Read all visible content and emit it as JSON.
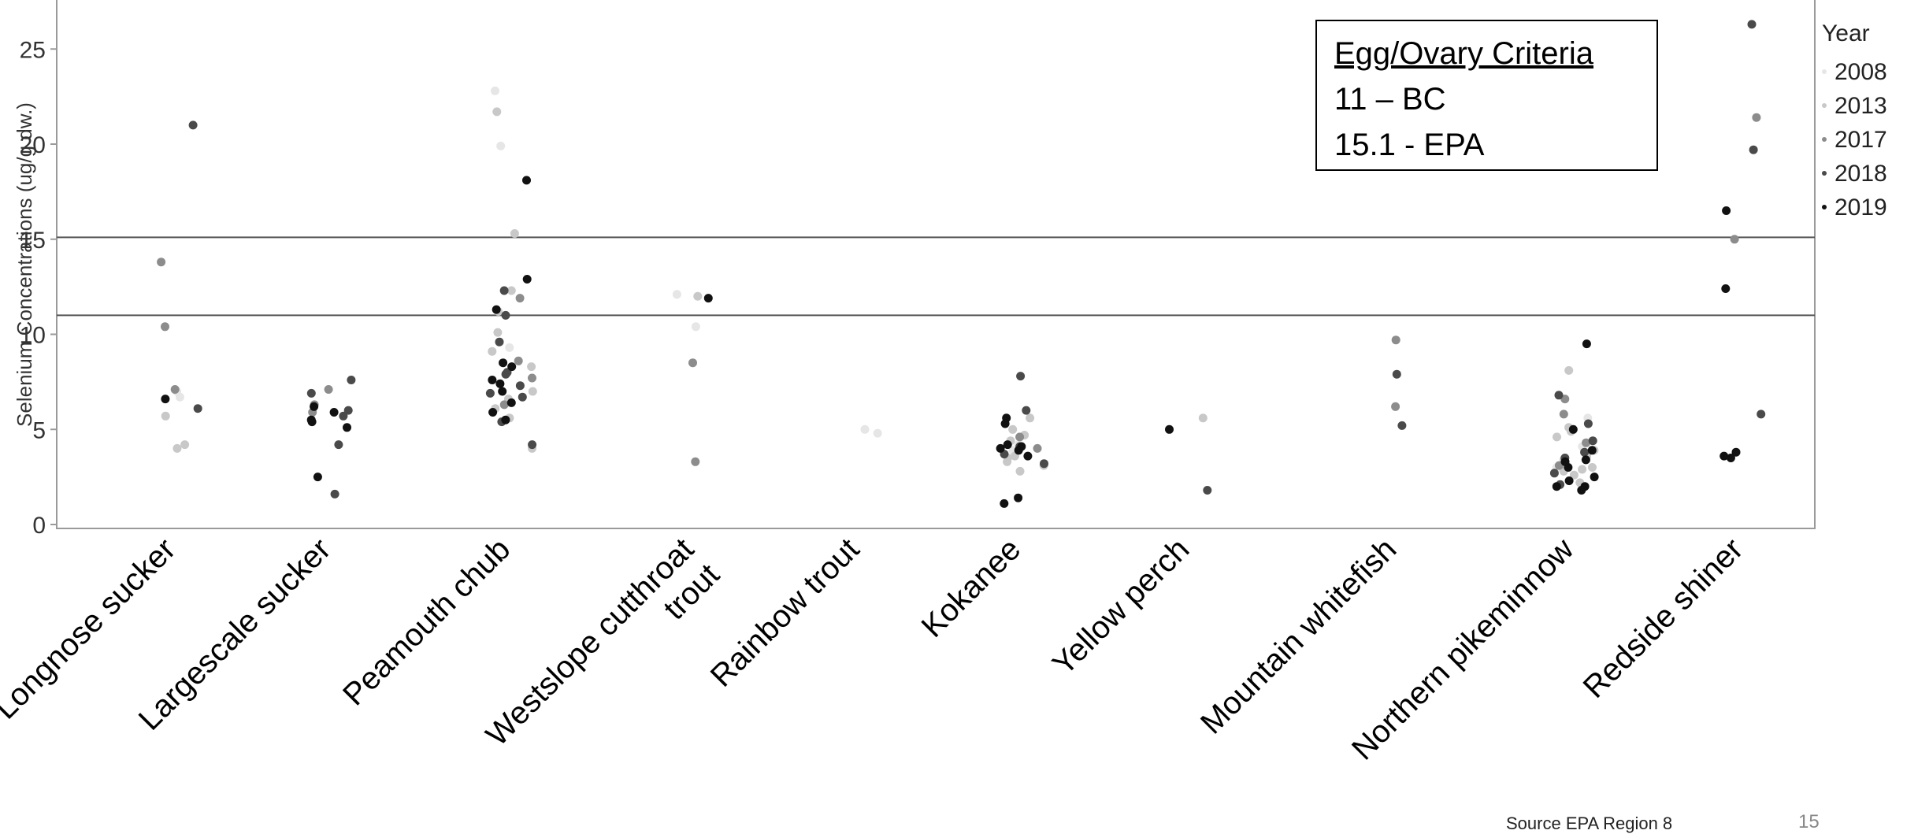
{
  "chart_data": {
    "type": "scatter",
    "title": "",
    "xlabel": "",
    "ylabel": "Selenium Concentrations (ug/g dw.)",
    "ylim": [
      0,
      27
    ],
    "yticks": [
      0,
      5,
      10,
      15,
      20,
      25
    ],
    "categories": [
      "Longnose sucker",
      "Largescale sucker",
      "Peamouth chub",
      "Westslope cutthroat trout",
      "Rainbow trout",
      "Kokanee",
      "Yellow perch",
      "Mountain whitefish",
      "Northern pikeminnow",
      "Redside shiner"
    ],
    "reference_lines": [
      {
        "value": 11,
        "label": "BC"
      },
      {
        "value": 15.1,
        "label": "EPA"
      }
    ],
    "legend": {
      "title": "Year",
      "placement": "right"
    },
    "series": [
      {
        "name": "2008",
        "color": "#e6e6e6",
        "points": [
          [
            "Longnose sucker",
            7.0
          ],
          [
            "Longnose sucker",
            6.7
          ],
          [
            "Peamouth chub",
            22.8
          ],
          [
            "Peamouth chub",
            19.9
          ],
          [
            "Peamouth chub",
            9.3
          ],
          [
            "Westslope cutthroat trout",
            10.4
          ],
          [
            "Westslope cutthroat trout",
            12.1
          ],
          [
            "Rainbow trout",
            4.8
          ],
          [
            "Rainbow trout",
            5.0
          ],
          [
            "Kokanee",
            4.2
          ],
          [
            "Kokanee",
            3.9
          ],
          [
            "Northern pikeminnow",
            5.6
          ],
          [
            "Northern pikeminnow",
            4.1
          ],
          [
            "Northern pikeminnow",
            3.0
          ]
        ]
      },
      {
        "name": "2013",
        "color": "#c8c8c8",
        "points": [
          [
            "Longnose sucker",
            4.0
          ],
          [
            "Longnose sucker",
            5.7
          ],
          [
            "Longnose sucker",
            4.2
          ],
          [
            "Peamouth chub",
            21.7
          ],
          [
            "Peamouth chub",
            15.3
          ],
          [
            "Peamouth chub",
            12.3
          ],
          [
            "Peamouth chub",
            10.1
          ],
          [
            "Peamouth chub",
            9.1
          ],
          [
            "Peamouth chub",
            8.3
          ],
          [
            "Peamouth chub",
            7.0
          ],
          [
            "Peamouth chub",
            6.1
          ],
          [
            "Peamouth chub",
            5.6
          ],
          [
            "Peamouth chub",
            4.0
          ],
          [
            "Peamouth chub",
            11.2
          ],
          [
            "Peamouth chub",
            6.6
          ],
          [
            "Westslope cutthroat trout",
            12.0
          ],
          [
            "Kokanee",
            5.6
          ],
          [
            "Kokanee",
            5.0
          ],
          [
            "Kokanee",
            3.5
          ],
          [
            "Kokanee",
            3.1
          ],
          [
            "Kokanee",
            2.8
          ],
          [
            "Kokanee",
            4.4
          ],
          [
            "Kokanee",
            4.7
          ],
          [
            "Kokanee",
            3.6
          ],
          [
            "Kokanee",
            3.3
          ],
          [
            "Yellow perch",
            5.6
          ],
          [
            "Northern pikeminnow",
            8.1
          ],
          [
            "Northern pikeminnow",
            5.1
          ],
          [
            "Northern pikeminnow",
            4.6
          ],
          [
            "Northern pikeminnow",
            3.9
          ],
          [
            "Northern pikeminnow",
            3.4
          ],
          [
            "Northern pikeminnow",
            3.0
          ],
          [
            "Northern pikeminnow",
            2.6
          ],
          [
            "Northern pikeminnow",
            2.8
          ],
          [
            "Northern pikeminnow",
            2.2
          ],
          [
            "Northern pikeminnow",
            4.9
          ],
          [
            "Northern pikeminnow",
            3.6
          ],
          [
            "Northern pikeminnow",
            2.9
          ]
        ]
      },
      {
        "name": "2017",
        "color": "#8c8c8c",
        "points": [
          [
            "Longnose sucker",
            13.8
          ],
          [
            "Longnose sucker",
            10.4
          ],
          [
            "Longnose sucker",
            7.1
          ],
          [
            "Largescale sucker",
            6.3
          ],
          [
            "Largescale sucker",
            5.9
          ],
          [
            "Largescale sucker",
            7.1
          ],
          [
            "Peamouth chub",
            11.9
          ],
          [
            "Peamouth chub",
            8.6
          ],
          [
            "Peamouth chub",
            7.7
          ],
          [
            "Peamouth chub",
            6.3
          ],
          [
            "Westslope cutthroat trout",
            8.5
          ],
          [
            "Westslope cutthroat trout",
            3.3
          ],
          [
            "Kokanee",
            4.6
          ],
          [
            "Kokanee",
            4.0
          ],
          [
            "Mountain whitefish",
            9.7
          ],
          [
            "Mountain whitefish",
            6.2
          ],
          [
            "Northern pikeminnow",
            6.6
          ],
          [
            "Northern pikeminnow",
            5.8
          ],
          [
            "Northern pikeminnow",
            4.3
          ],
          [
            "Northern pikeminnow",
            3.1
          ],
          [
            "Redside shiner",
            15.0
          ],
          [
            "Redside shiner",
            21.4
          ]
        ]
      },
      {
        "name": "2018",
        "color": "#4a4a4a",
        "points": [
          [
            "Longnose sucker",
            21.0
          ],
          [
            "Longnose sucker",
            6.1
          ],
          [
            "Largescale sucker",
            7.6
          ],
          [
            "Largescale sucker",
            6.0
          ],
          [
            "Largescale sucker",
            5.7
          ],
          [
            "Largescale sucker",
            4.2
          ],
          [
            "Largescale sucker",
            1.6
          ],
          [
            "Largescale sucker",
            6.9
          ],
          [
            "Peamouth chub",
            12.3
          ],
          [
            "Peamouth chub",
            11.0
          ],
          [
            "Peamouth chub",
            9.6
          ],
          [
            "Peamouth chub",
            8.0
          ],
          [
            "Peamouth chub",
            7.3
          ],
          [
            "Peamouth chub",
            6.7
          ],
          [
            "Peamouth chub",
            5.4
          ],
          [
            "Peamouth chub",
            4.2
          ],
          [
            "Peamouth chub",
            6.9
          ],
          [
            "Peamouth chub",
            7.9
          ],
          [
            "Kokanee",
            6.0
          ],
          [
            "Kokanee",
            4.1
          ],
          [
            "Kokanee",
            3.7
          ],
          [
            "Kokanee",
            3.2
          ],
          [
            "Kokanee",
            7.8
          ],
          [
            "Yellow perch",
            1.8
          ],
          [
            "Mountain whitefish",
            5.2
          ],
          [
            "Mountain whitefish",
            7.9
          ],
          [
            "Northern pikeminnow",
            6.8
          ],
          [
            "Northern pikeminnow",
            5.3
          ],
          [
            "Northern pikeminnow",
            4.4
          ],
          [
            "Northern pikeminnow",
            3.5
          ],
          [
            "Northern pikeminnow",
            2.7
          ],
          [
            "Northern pikeminnow",
            2.1
          ],
          [
            "Northern pikeminnow",
            3.8
          ],
          [
            "Redside shiner",
            19.7
          ],
          [
            "Redside shiner",
            26.3
          ],
          [
            "Redside shiner",
            5.8
          ]
        ]
      },
      {
        "name": "2019",
        "color": "#111111",
        "points": [
          [
            "Longnose sucker",
            6.6
          ],
          [
            "Largescale sucker",
            5.1
          ],
          [
            "Largescale sucker",
            2.5
          ],
          [
            "Largescale sucker",
            5.4
          ],
          [
            "Largescale sucker",
            6.2
          ],
          [
            "Largescale sucker",
            5.5
          ],
          [
            "Largescale sucker",
            5.9
          ],
          [
            "Peamouth chub",
            18.1
          ],
          [
            "Peamouth chub",
            12.9
          ],
          [
            "Peamouth chub",
            11.3
          ],
          [
            "Peamouth chub",
            8.3
          ],
          [
            "Peamouth chub",
            7.6
          ],
          [
            "Peamouth chub",
            7.0
          ],
          [
            "Peamouth chub",
            6.4
          ],
          [
            "Peamouth chub",
            5.9
          ],
          [
            "Peamouth chub",
            5.5
          ],
          [
            "Peamouth chub",
            7.4
          ],
          [
            "Peamouth chub",
            8.5
          ],
          [
            "Westslope cutthroat trout",
            11.9
          ],
          [
            "Kokanee",
            5.6
          ],
          [
            "Kokanee",
            4.2
          ],
          [
            "Kokanee",
            4.0
          ],
          [
            "Kokanee",
            3.6
          ],
          [
            "Kokanee",
            1.1
          ],
          [
            "Kokanee",
            1.4
          ],
          [
            "Kokanee",
            5.3
          ],
          [
            "Kokanee",
            4.1
          ],
          [
            "Kokanee",
            3.9
          ],
          [
            "Yellow perch",
            5.0
          ],
          [
            "Northern pikeminnow",
            9.5
          ],
          [
            "Northern pikeminnow",
            5.0
          ],
          [
            "Northern pikeminnow",
            3.4
          ],
          [
            "Northern pikeminnow",
            3.0
          ],
          [
            "Northern pikeminnow",
            2.5
          ],
          [
            "Northern pikeminnow",
            2.0
          ],
          [
            "Northern pikeminnow",
            1.8
          ],
          [
            "Northern pikeminnow",
            3.3
          ],
          [
            "Northern pikeminnow",
            2.3
          ],
          [
            "Northern pikeminnow",
            2.0
          ],
          [
            "Northern pikeminnow",
            3.9
          ],
          [
            "Redside shiner",
            16.5
          ],
          [
            "Redside shiner",
            12.4
          ],
          [
            "Redside shiner",
            3.5
          ],
          [
            "Redside shiner",
            3.8
          ],
          [
            "Redside shiner",
            3.6
          ]
        ]
      }
    ]
  },
  "criteria": {
    "title": "Egg/Ovary Criteria",
    "line1": "11 – BC",
    "line2": "15.1 - EPA"
  },
  "legend": {
    "title": "Year",
    "items": [
      {
        "label": "2008",
        "color": "#e6e6e6"
      },
      {
        "label": "2013",
        "color": "#c8c8c8"
      },
      {
        "label": "2017",
        "color": "#8c8c8c"
      },
      {
        "label": "2018",
        "color": "#4a4a4a"
      },
      {
        "label": "2019",
        "color": "#111111"
      }
    ]
  },
  "footer": {
    "source": "Source EPA Region 8",
    "page": "15"
  }
}
